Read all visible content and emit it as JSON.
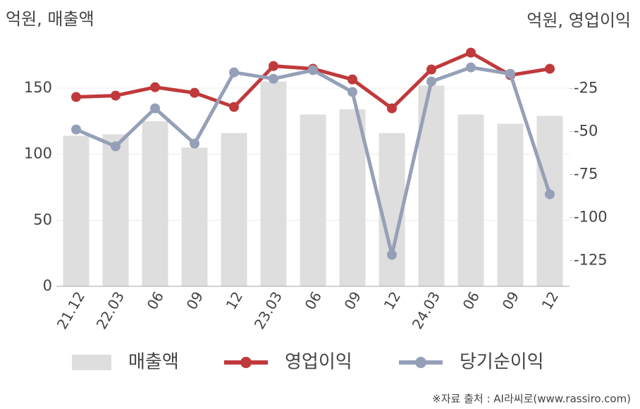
{
  "chart_data": {
    "type": "bar-line",
    "y_label": "억원, 매출액",
    "y2_label": "억원, 영업이익",
    "source": "※자료 출처 : AI라씨로(www.rassiro.com)",
    "categories": [
      "21.12",
      "22.03",
      "06",
      "09",
      "12",
      "23.03",
      "06",
      "09",
      "12",
      "24.03",
      "06",
      "09",
      "12"
    ],
    "ylim": [
      0,
      190
    ],
    "yticks": [
      0,
      50,
      100,
      150
    ],
    "y2lim": [
      -140,
      6
    ],
    "y2ticks": [
      -125,
      -100,
      -75,
      -50,
      -25
    ],
    "grid": true,
    "series": [
      {
        "name": "매출액",
        "kind": "bar",
        "color": "#dedede",
        "values": [
          114,
          115,
          125,
          105,
          116,
          155,
          130,
          134,
          116,
          152,
          130,
          123,
          129
        ]
      },
      {
        "name": "영업이익",
        "kind": "line",
        "axis": "y2",
        "color": "#c0393b",
        "values": [
          -29.9,
          -29.1,
          -24.2,
          -27.5,
          -35.7,
          -11.9,
          -13.5,
          -19.7,
          -36.5,
          -13.9,
          -4.1,
          -17.2,
          -13.5
        ]
      },
      {
        "name": "당기순이익",
        "kind": "line",
        "axis": "y2",
        "color": "#95a0b8",
        "values": [
          -48.8,
          -58.6,
          -36.5,
          -57,
          -15.6,
          -19.3,
          -14.3,
          -27,
          -121.7,
          -20.9,
          -12.7,
          -16.4,
          -86.5
        ]
      }
    ]
  }
}
